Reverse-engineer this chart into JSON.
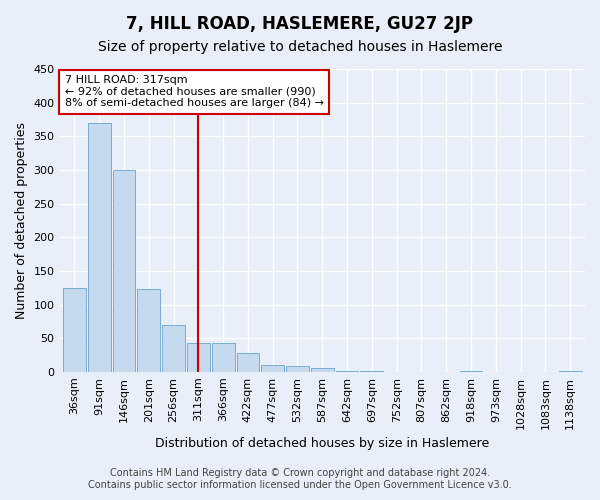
{
  "title": "7, HILL ROAD, HASLEMERE, GU27 2JP",
  "subtitle": "Size of property relative to detached houses in Haslemere",
  "xlabel": "Distribution of detached houses by size in Haslemere",
  "ylabel": "Number of detached properties",
  "categories": [
    "36sqm",
    "91sqm",
    "146sqm",
    "201sqm",
    "256sqm",
    "311sqm",
    "366sqm",
    "422sqm",
    "477sqm",
    "532sqm",
    "587sqm",
    "642sqm",
    "697sqm",
    "752sqm",
    "807sqm",
    "862sqm",
    "918sqm",
    "973sqm",
    "1028sqm",
    "1083sqm",
    "1138sqm"
  ],
  "values": [
    125,
    370,
    300,
    123,
    70,
    43,
    43,
    28,
    10,
    9,
    5,
    1,
    1,
    0,
    0,
    0,
    1,
    0,
    0,
    0,
    1
  ],
  "bar_color": "#c5d9ef",
  "bar_edge_color": "#7aadd4",
  "highlight_index": 5,
  "highlight_line_color": "#cc0000",
  "annotation_box_color": "#ffffff",
  "annotation_border_color": "#cc0000",
  "annotation_text_line1": "7 HILL ROAD: 317sqm",
  "annotation_text_line2": "← 92% of detached houses are smaller (990)",
  "annotation_text_line3": "8% of semi-detached houses are larger (84) →",
  "ylim": [
    0,
    450
  ],
  "yticks": [
    0,
    50,
    100,
    150,
    200,
    250,
    300,
    350,
    400,
    450
  ],
  "footer_line1": "Contains HM Land Registry data © Crown copyright and database right 2024.",
  "footer_line2": "Contains public sector information licensed under the Open Government Licence v3.0.",
  "title_fontsize": 12,
  "subtitle_fontsize": 10,
  "axis_label_fontsize": 9,
  "tick_fontsize": 8,
  "footer_fontsize": 7,
  "bg_color": "#e8eff8",
  "grid_color": "#ffffff"
}
